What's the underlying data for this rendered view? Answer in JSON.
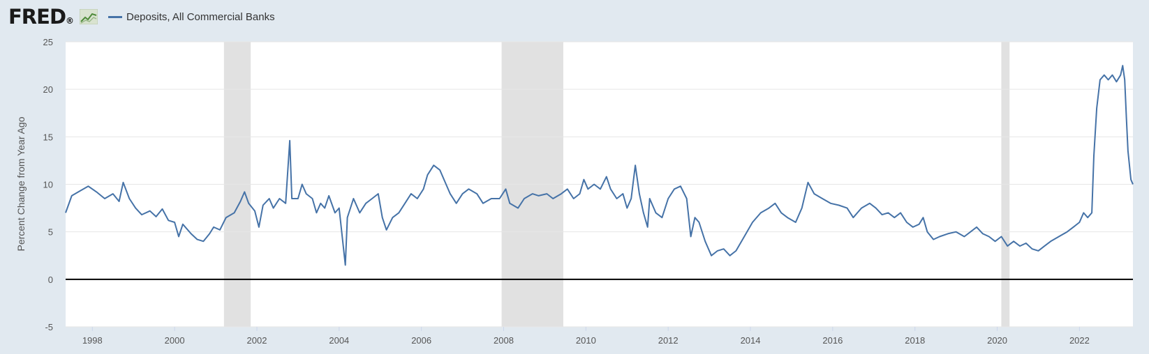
{
  "header": {
    "logo_text": "FRED",
    "logo_reg": "®",
    "legend_label": "Deposits, All Commercial Banks",
    "series_color": "#4572a7"
  },
  "chart_data": {
    "type": "line",
    "title": "",
    "ylabel": "Percent Change from Year Ago",
    "xlabel": "",
    "ylim": [
      -5,
      25
    ],
    "yticks": [
      -5,
      0,
      5,
      10,
      15,
      20,
      25
    ],
    "xlim": [
      1997.35,
      2023.3
    ],
    "xticks": [
      1998,
      2000,
      2002,
      2004,
      2006,
      2008,
      2010,
      2012,
      2014,
      2016,
      2018,
      2020,
      2022
    ],
    "grid": true,
    "zero_line": true,
    "recessions": [
      [
        2001.2,
        2001.85
      ],
      [
        2007.95,
        2009.45
      ],
      [
        2020.1,
        2020.3
      ]
    ],
    "series": [
      {
        "name": "Deposits, All Commercial Banks",
        "color": "#4572a7",
        "points": [
          [
            1997.35,
            7.0
          ],
          [
            1997.5,
            8.8
          ],
          [
            1997.7,
            9.3
          ],
          [
            1997.9,
            9.8
          ],
          [
            1998.1,
            9.2
          ],
          [
            1998.3,
            8.5
          ],
          [
            1998.5,
            9.0
          ],
          [
            1998.65,
            8.2
          ],
          [
            1998.75,
            10.2
          ],
          [
            1998.9,
            8.5
          ],
          [
            1999.05,
            7.5
          ],
          [
            1999.2,
            6.8
          ],
          [
            1999.4,
            7.2
          ],
          [
            1999.55,
            6.6
          ],
          [
            1999.7,
            7.4
          ],
          [
            1999.85,
            6.2
          ],
          [
            2000.0,
            6.0
          ],
          [
            2000.1,
            4.5
          ],
          [
            2000.2,
            5.8
          ],
          [
            2000.4,
            4.8
          ],
          [
            2000.55,
            4.2
          ],
          [
            2000.7,
            4.0
          ],
          [
            2000.85,
            4.8
          ],
          [
            2000.95,
            5.5
          ],
          [
            2001.1,
            5.2
          ],
          [
            2001.25,
            6.5
          ],
          [
            2001.45,
            7.0
          ],
          [
            2001.6,
            8.2
          ],
          [
            2001.7,
            9.2
          ],
          [
            2001.8,
            8.0
          ],
          [
            2001.95,
            7.2
          ],
          [
            2002.05,
            5.5
          ],
          [
            2002.15,
            7.8
          ],
          [
            2002.3,
            8.5
          ],
          [
            2002.4,
            7.5
          ],
          [
            2002.55,
            8.5
          ],
          [
            2002.7,
            8.0
          ],
          [
            2002.8,
            14.6
          ],
          [
            2002.85,
            8.5
          ],
          [
            2003.0,
            8.5
          ],
          [
            2003.1,
            10.0
          ],
          [
            2003.2,
            9.0
          ],
          [
            2003.35,
            8.5
          ],
          [
            2003.45,
            7.0
          ],
          [
            2003.55,
            8.0
          ],
          [
            2003.65,
            7.5
          ],
          [
            2003.75,
            8.8
          ],
          [
            2003.9,
            7.0
          ],
          [
            2004.0,
            7.5
          ],
          [
            2004.15,
            1.5
          ],
          [
            2004.2,
            6.5
          ],
          [
            2004.35,
            8.5
          ],
          [
            2004.5,
            7.0
          ],
          [
            2004.65,
            8.0
          ],
          [
            2004.8,
            8.5
          ],
          [
            2004.95,
            9.0
          ],
          [
            2005.05,
            6.5
          ],
          [
            2005.15,
            5.2
          ],
          [
            2005.3,
            6.5
          ],
          [
            2005.45,
            7.0
          ],
          [
            2005.6,
            8.0
          ],
          [
            2005.75,
            9.0
          ],
          [
            2005.9,
            8.5
          ],
          [
            2006.05,
            9.5
          ],
          [
            2006.15,
            11.0
          ],
          [
            2006.3,
            12.0
          ],
          [
            2006.45,
            11.5
          ],
          [
            2006.6,
            10.0
          ],
          [
            2006.7,
            9.0
          ],
          [
            2006.85,
            8.0
          ],
          [
            2007.0,
            9.0
          ],
          [
            2007.15,
            9.5
          ],
          [
            2007.35,
            9.0
          ],
          [
            2007.5,
            8.0
          ],
          [
            2007.7,
            8.5
          ],
          [
            2007.9,
            8.5
          ],
          [
            2008.05,
            9.5
          ],
          [
            2008.15,
            8.0
          ],
          [
            2008.35,
            7.5
          ],
          [
            2008.5,
            8.5
          ],
          [
            2008.7,
            9.0
          ],
          [
            2008.85,
            8.8
          ],
          [
            2009.05,
            9.0
          ],
          [
            2009.2,
            8.5
          ],
          [
            2009.4,
            9.0
          ],
          [
            2009.55,
            9.5
          ],
          [
            2009.7,
            8.5
          ],
          [
            2009.85,
            9.0
          ],
          [
            2009.95,
            10.5
          ],
          [
            2010.05,
            9.5
          ],
          [
            2010.2,
            10.0
          ],
          [
            2010.35,
            9.5
          ],
          [
            2010.5,
            10.8
          ],
          [
            2010.6,
            9.5
          ],
          [
            2010.75,
            8.5
          ],
          [
            2010.9,
            9.0
          ],
          [
            2011.0,
            7.5
          ],
          [
            2011.1,
            8.5
          ],
          [
            2011.2,
            12.0
          ],
          [
            2011.3,
            9.0
          ],
          [
            2011.4,
            7.0
          ],
          [
            2011.5,
            5.5
          ],
          [
            2011.55,
            8.5
          ],
          [
            2011.7,
            7.0
          ],
          [
            2011.85,
            6.5
          ],
          [
            2012.0,
            8.5
          ],
          [
            2012.15,
            9.5
          ],
          [
            2012.3,
            9.8
          ],
          [
            2012.45,
            8.5
          ],
          [
            2012.55,
            4.5
          ],
          [
            2012.65,
            6.5
          ],
          [
            2012.75,
            6.0
          ],
          [
            2012.9,
            4.0
          ],
          [
            2013.05,
            2.5
          ],
          [
            2013.2,
            3.0
          ],
          [
            2013.35,
            3.2
          ],
          [
            2013.5,
            2.5
          ],
          [
            2013.65,
            3.0
          ],
          [
            2013.85,
            4.5
          ],
          [
            2014.05,
            6.0
          ],
          [
            2014.25,
            7.0
          ],
          [
            2014.45,
            7.5
          ],
          [
            2014.6,
            8.0
          ],
          [
            2014.75,
            7.0
          ],
          [
            2014.9,
            6.5
          ],
          [
            2015.1,
            6.0
          ],
          [
            2015.25,
            7.5
          ],
          [
            2015.4,
            10.2
          ],
          [
            2015.55,
            9.0
          ],
          [
            2015.75,
            8.5
          ],
          [
            2015.95,
            8.0
          ],
          [
            2016.15,
            7.8
          ],
          [
            2016.35,
            7.5
          ],
          [
            2016.5,
            6.5
          ],
          [
            2016.7,
            7.5
          ],
          [
            2016.9,
            8.0
          ],
          [
            2017.05,
            7.5
          ],
          [
            2017.2,
            6.8
          ],
          [
            2017.35,
            7.0
          ],
          [
            2017.5,
            6.5
          ],
          [
            2017.65,
            7.0
          ],
          [
            2017.8,
            6.0
          ],
          [
            2017.95,
            5.5
          ],
          [
            2018.1,
            5.8
          ],
          [
            2018.2,
            6.5
          ],
          [
            2018.3,
            5.0
          ],
          [
            2018.45,
            4.2
          ],
          [
            2018.6,
            4.5
          ],
          [
            2018.8,
            4.8
          ],
          [
            2019.0,
            5.0
          ],
          [
            2019.2,
            4.5
          ],
          [
            2019.35,
            5.0
          ],
          [
            2019.5,
            5.5
          ],
          [
            2019.65,
            4.8
          ],
          [
            2019.8,
            4.5
          ],
          [
            2019.95,
            4.0
          ],
          [
            2020.1,
            4.5
          ],
          [
            2020.25,
            3.5
          ],
          [
            2020.4,
            4.0
          ],
          [
            2020.55,
            3.5
          ],
          [
            2020.7,
            3.8
          ],
          [
            2020.85,
            3.2
          ],
          [
            2021.0,
            3.0
          ],
          [
            2021.15,
            3.5
          ],
          [
            2021.3,
            4.0
          ],
          [
            2021.5,
            4.5
          ],
          [
            2021.7,
            5.0
          ],
          [
            2021.85,
            5.5
          ],
          [
            2022.0,
            6.0
          ],
          [
            2022.1,
            7.0
          ],
          [
            2022.2,
            6.5
          ],
          [
            2022.3,
            7.0
          ],
          [
            2022.35,
            13.0
          ],
          [
            2022.42,
            18.0
          ],
          [
            2022.5,
            21.0
          ],
          [
            2022.6,
            21.5
          ],
          [
            2022.7,
            21.0
          ],
          [
            2022.8,
            21.5
          ],
          [
            2022.9,
            20.8
          ],
          [
            2023.0,
            21.5
          ],
          [
            2023.05,
            22.5
          ],
          [
            2023.1,
            21.0
          ],
          [
            2023.14,
            17.0
          ],
          [
            2023.18,
            13.5
          ],
          [
            2023.25,
            10.5
          ],
          [
            2023.3,
            10.0
          ]
        ]
      }
    ]
  }
}
